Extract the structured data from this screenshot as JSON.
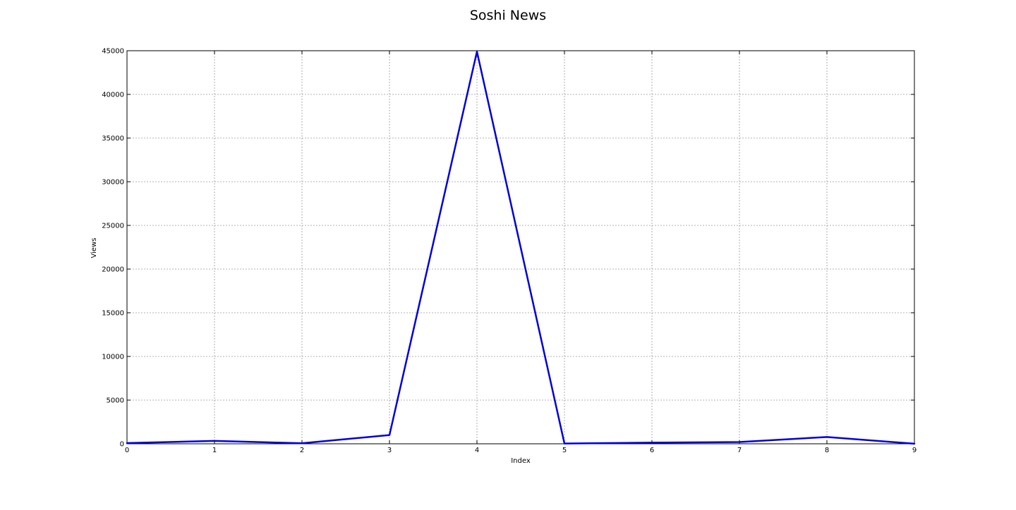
{
  "chart_data": {
    "type": "line",
    "title": "Soshi News",
    "xlabel": "Index",
    "ylabel": "Views",
    "x": [
      0,
      1,
      2,
      3,
      4,
      5,
      6,
      7,
      8,
      9
    ],
    "series": [
      {
        "values": [
          80,
          330,
          60,
          1000,
          44900,
          30,
          130,
          200,
          780,
          10
        ],
        "color": "#0000dd"
      }
    ],
    "xlim": [
      0,
      9
    ],
    "ylim": [
      0,
      45000
    ],
    "xticks": [
      0,
      1,
      2,
      3,
      4,
      5,
      6,
      7,
      8,
      9
    ],
    "yticks": [
      0,
      5000,
      10000,
      15000,
      20000,
      25000,
      30000,
      35000,
      40000,
      45000
    ],
    "grid": true
  }
}
